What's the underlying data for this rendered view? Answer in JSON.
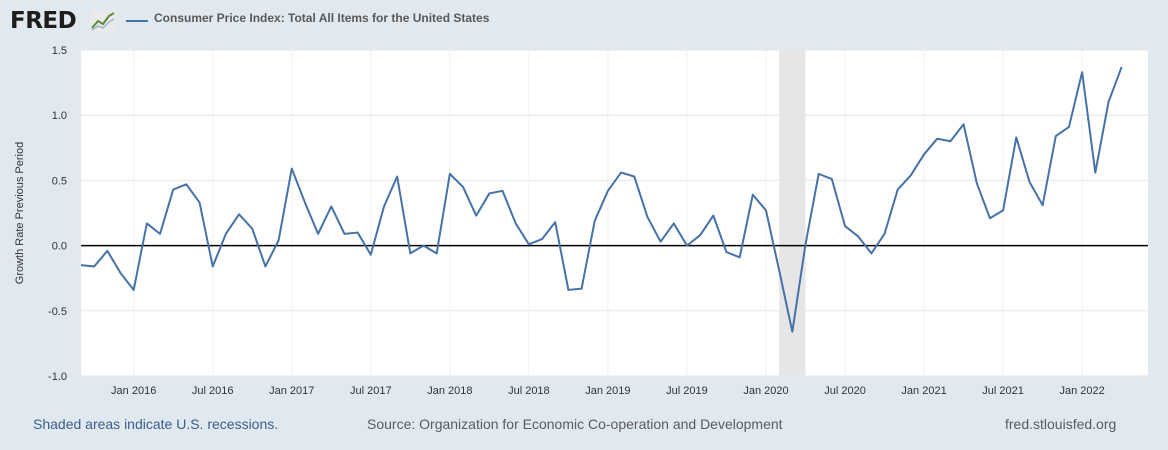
{
  "header": {
    "logo_text": "FRED",
    "legend_label": "Consumer Price Index: Total All Items for the United States"
  },
  "colors": {
    "series": "#4572a7",
    "background": "#e1e9f0",
    "plot_bg": "#ffffff",
    "recession": "#e6e6e6",
    "zero_line": "#000000"
  },
  "footer": {
    "recession_note": "Shaded areas indicate U.S. recessions.",
    "source": "Source: Organization for Economic Co-operation and Development",
    "site": "fred.stlouisfed.org"
  },
  "chart_data": {
    "type": "line",
    "title": "Consumer Price Index: Total All Items for the United States",
    "ylabel": "Growth Rate Previous Period",
    "xlabel": "",
    "ylim": [
      -1.0,
      1.5
    ],
    "yticks": [
      1.5,
      1.0,
      0.5,
      0.0,
      -0.5,
      -1.0
    ],
    "ytick_labels": [
      "1.5",
      "1.0",
      "0.5",
      "0.0",
      "-0.5",
      "-1.0"
    ],
    "x_start": "2015-09",
    "x_end": "2022-06",
    "xtick_labels": [
      "Jan 2016",
      "Jul 2016",
      "Jan 2017",
      "Jul 2017",
      "Jan 2018",
      "Jul 2018",
      "Jan 2019",
      "Jul 2019",
      "Jan 2020",
      "Jul 2020",
      "Jan 2021",
      "Jul 2021",
      "Jan 2022"
    ],
    "xtick_months": [
      "2016-01",
      "2016-07",
      "2017-01",
      "2017-07",
      "2018-01",
      "2018-07",
      "2019-01",
      "2019-07",
      "2020-01",
      "2020-07",
      "2021-01",
      "2021-07",
      "2022-01"
    ],
    "recession": {
      "start": "2020-02",
      "end": "2020-04"
    },
    "series": [
      {
        "name": "Consumer Price Index: Total All Items for the United States",
        "values": [
          -0.15,
          -0.16,
          -0.04,
          -0.21,
          -0.34,
          0.17,
          0.09,
          0.43,
          0.47,
          0.33,
          -0.16,
          0.09,
          0.24,
          0.13,
          -0.16,
          0.04,
          0.59,
          0.33,
          0.09,
          0.3,
          0.09,
          0.1,
          -0.07,
          0.3,
          0.53,
          -0.06,
          0.0,
          -0.06,
          0.55,
          0.45,
          0.23,
          0.4,
          0.42,
          0.17,
          0.01,
          0.05,
          0.18,
          -0.34,
          -0.33,
          0.19,
          0.42,
          0.56,
          0.53,
          0.22,
          0.03,
          0.17,
          0.0,
          0.08,
          0.23,
          -0.05,
          -0.09,
          0.39,
          0.27,
          -0.19,
          -0.66,
          0.01,
          0.55,
          0.51,
          0.15,
          0.07,
          -0.06,
          0.09,
          0.43,
          0.54,
          0.7,
          0.82,
          0.8,
          0.93,
          0.48,
          0.21,
          0.27,
          0.83,
          0.49,
          0.31,
          0.84,
          0.91,
          1.33,
          0.56,
          1.1,
          1.37
        ]
      }
    ]
  }
}
